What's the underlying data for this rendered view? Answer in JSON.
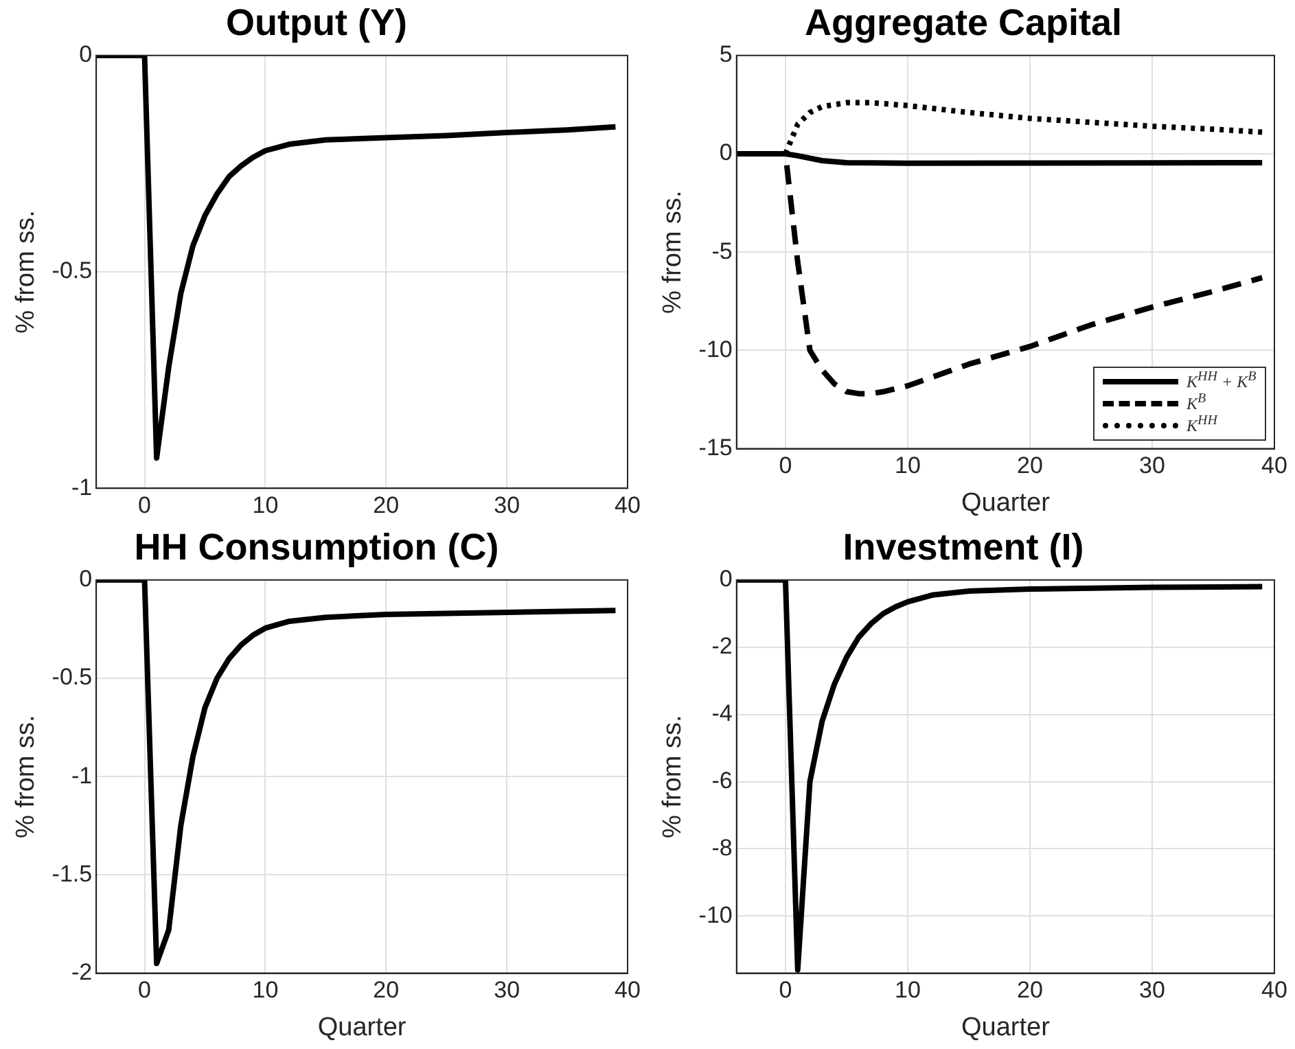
{
  "chart_data": [
    {
      "type": "line",
      "title": "Output (Y)",
      "ylabel": "% from ss.",
      "xlim": [
        -4,
        40
      ],
      "xticks": [
        0,
        10,
        20,
        30,
        40
      ],
      "ylim": [
        -1,
        0
      ],
      "yticks": [
        -1,
        -0.5,
        0
      ],
      "grid": true,
      "legend": false,
      "marker": "none",
      "series": [
        {
          "color": "#000000",
          "line_style": "solid",
          "x": [
            -4,
            -3,
            -2,
            -1,
            0,
            1,
            2,
            3,
            4,
            5,
            6,
            7,
            8,
            9,
            10,
            12,
            15,
            20,
            25,
            30,
            35,
            39
          ],
          "values": [
            0,
            0,
            0,
            0,
            0,
            -0.93,
            -0.72,
            -0.55,
            -0.44,
            -0.37,
            -0.32,
            -0.28,
            -0.255,
            -0.235,
            -0.22,
            -0.205,
            -0.195,
            -0.19,
            -0.185,
            -0.178,
            -0.172,
            -0.165
          ]
        }
      ]
    },
    {
      "type": "line",
      "title": "Aggregate Capital",
      "xlabel": "Quarter",
      "ylabel": "% from ss.",
      "xlim": [
        -4,
        40
      ],
      "xticks": [
        0,
        10,
        20,
        30,
        40
      ],
      "ylim": [
        -15,
        5
      ],
      "yticks": [
        -15,
        -10,
        -5,
        0,
        5
      ],
      "grid": true,
      "legend": "bottom right",
      "marker": "none",
      "series": [
        {
          "name": "K$^{HH}$ + K$^{B}$",
          "color": "#000000",
          "line_style": "solid",
          "x": [
            -4,
            -3,
            -2,
            -1,
            0,
            1,
            3,
            5,
            10,
            20,
            30,
            39
          ],
          "values": [
            0,
            0,
            0,
            0,
            0,
            -0.1,
            -0.35,
            -0.45,
            -0.48,
            -0.47,
            -0.46,
            -0.45
          ]
        },
        {
          "name": "K$^{B}$",
          "color": "#000000",
          "line_style": "dashed",
          "x": [
            -4,
            -3,
            -2,
            -1,
            0,
            1,
            2,
            3,
            4,
            5,
            6,
            7,
            8,
            10,
            15,
            20,
            25,
            30,
            35,
            39
          ],
          "values": [
            0,
            0,
            0,
            0,
            0,
            -5.5,
            -10,
            -11,
            -11.7,
            -12.1,
            -12.2,
            -12.2,
            -12.1,
            -11.8,
            -10.7,
            -9.8,
            -8.7,
            -7.8,
            -7,
            -6.3
          ]
        },
        {
          "name": "K$^{HH}$",
          "color": "#000000",
          "line_style": "dotted",
          "x": [
            0,
            1,
            2,
            3,
            5,
            7,
            10,
            15,
            20,
            25,
            30,
            35,
            39
          ],
          "values": [
            0,
            1.5,
            2.1,
            2.4,
            2.6,
            2.6,
            2.45,
            2.1,
            1.8,
            1.6,
            1.4,
            1.25,
            1.1
          ]
        }
      ]
    },
    {
      "type": "line",
      "title": "HH Consumption (C)",
      "xlabel": "Quarter",
      "ylabel": "% from ss.",
      "xlim": [
        -4,
        40
      ],
      "xticks": [
        0,
        10,
        20,
        30,
        40
      ],
      "ylim": [
        -2,
        0
      ],
      "yticks": [
        -2,
        -1.5,
        -1,
        -0.5,
        0
      ],
      "grid": true,
      "legend": false,
      "marker": "none",
      "series": [
        {
          "color": "#000000",
          "line_style": "solid",
          "x": [
            -4,
            -3,
            -2,
            -1,
            0,
            1,
            2,
            3,
            4,
            5,
            6,
            7,
            8,
            9,
            10,
            12,
            15,
            20,
            30,
            39
          ],
          "values": [
            0,
            0,
            0,
            0,
            0,
            -1.95,
            -1.78,
            -1.25,
            -0.9,
            -0.65,
            -0.5,
            -0.4,
            -0.33,
            -0.28,
            -0.245,
            -0.21,
            -0.19,
            -0.175,
            -0.165,
            -0.155
          ]
        }
      ]
    },
    {
      "type": "line",
      "title": "Investment (I)",
      "xlabel": "Quarter",
      "ylabel": "% from ss.",
      "xlim": [
        -4,
        40
      ],
      "xticks": [
        0,
        10,
        20,
        30,
        40
      ],
      "ylim": [
        -11.7,
        0
      ],
      "yticks": [
        -10,
        -8,
        -6,
        -4,
        -2,
        0
      ],
      "grid": true,
      "legend": false,
      "marker": "none",
      "series": [
        {
          "color": "#000000",
          "line_style": "solid",
          "x": [
            -4,
            -3,
            -2,
            -1,
            0,
            1,
            2,
            3,
            4,
            5,
            6,
            7,
            8,
            9,
            10,
            12,
            15,
            20,
            30,
            39
          ],
          "values": [
            0,
            0,
            0,
            0,
            0,
            -11.6,
            -6,
            -4.2,
            -3.1,
            -2.3,
            -1.7,
            -1.3,
            -1,
            -0.8,
            -0.65,
            -0.45,
            -0.33,
            -0.27,
            -0.22,
            -0.2
          ]
        }
      ]
    }
  ]
}
